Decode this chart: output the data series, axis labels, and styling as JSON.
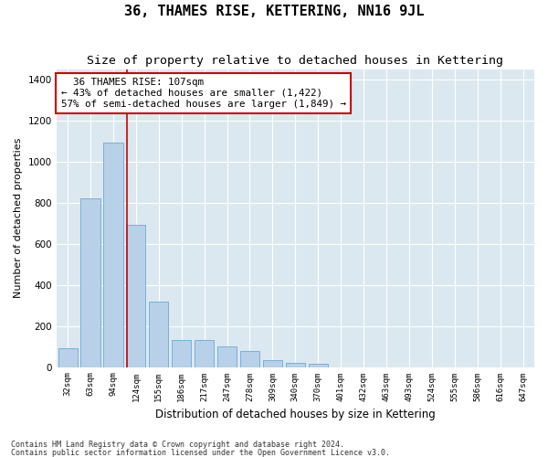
{
  "title": "36, THAMES RISE, KETTERING, NN16 9JL",
  "subtitle": "Size of property relative to detached houses in Kettering",
  "xlabel": "Distribution of detached houses by size in Kettering",
  "ylabel": "Number of detached properties",
  "footer_line1": "Contains HM Land Registry data © Crown copyright and database right 2024.",
  "footer_line2": "Contains public sector information licensed under the Open Government Licence v3.0.",
  "categories": [
    "32sqm",
    "63sqm",
    "94sqm",
    "124sqm",
    "155sqm",
    "186sqm",
    "217sqm",
    "247sqm",
    "278sqm",
    "309sqm",
    "340sqm",
    "370sqm",
    "401sqm",
    "432sqm",
    "463sqm",
    "493sqm",
    "524sqm",
    "555sqm",
    "586sqm",
    "616sqm",
    "647sqm"
  ],
  "values": [
    90,
    820,
    1090,
    690,
    320,
    130,
    130,
    100,
    80,
    35,
    20,
    15,
    0,
    0,
    0,
    0,
    0,
    0,
    0,
    0,
    0
  ],
  "bar_color": "#b8d0e8",
  "bar_edge_color": "#6aaad4",
  "background_color": "#dce8f0",
  "grid_color": "#ffffff",
  "vline_x_index": 2.62,
  "vline_color": "#cc0000",
  "annotation_text": "  36 THAMES RISE: 107sqm\n← 43% of detached houses are smaller (1,422)\n57% of semi-detached houses are larger (1,849) →",
  "annotation_box_color": "#ffffff",
  "annotation_box_edge": "#cc0000",
  "ylim": [
    0,
    1450
  ],
  "yticks": [
    0,
    200,
    400,
    600,
    800,
    1000,
    1200,
    1400
  ],
  "fig_width": 6.0,
  "fig_height": 5.0,
  "dpi": 100,
  "title_fontsize": 11,
  "subtitle_fontsize": 9.5,
  "annotation_fontsize": 7.8,
  "xlabel_fontsize": 8.5,
  "ylabel_fontsize": 8,
  "xtick_fontsize": 6.5,
  "ytick_fontsize": 7.5,
  "footer_fontsize": 6
}
